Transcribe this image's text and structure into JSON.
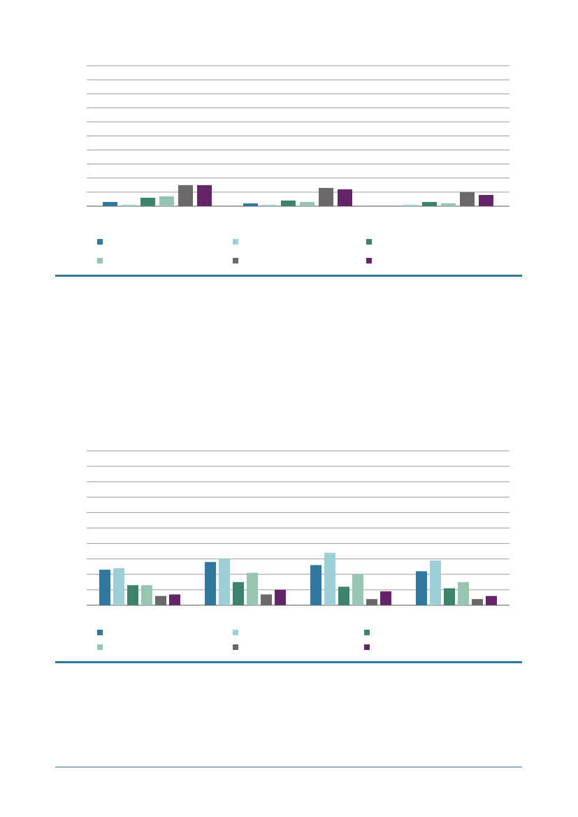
{
  "colors": {
    "blue": "#31789e",
    "light_blue": "#9ecfd9",
    "green": "#3b836a",
    "light_green": "#96c5b1",
    "gray": "#6d6868",
    "purple": "#662569",
    "grid": "#9a9a9a",
    "rule": "#31789e"
  },
  "chart_data": [
    {
      "type": "bar",
      "categories": [
        "",
        "",
        ""
      ],
      "ylim": [
        0,
        100
      ],
      "grid": true,
      "legend_placement": "bottom",
      "series": [
        {
          "color_key": "blue",
          "values": [
            3,
            2,
            0
          ]
        },
        {
          "color_key": "light_blue",
          "values": [
            1,
            1,
            1
          ]
        },
        {
          "color_key": "green",
          "values": [
            6,
            4,
            3
          ]
        },
        {
          "color_key": "light_green",
          "values": [
            7,
            3,
            2
          ]
        },
        {
          "color_key": "gray",
          "values": [
            15,
            13,
            10
          ]
        },
        {
          "color_key": "purple",
          "values": [
            15,
            12,
            8
          ]
        }
      ]
    },
    {
      "type": "bar",
      "categories": [
        "",
        "",
        "",
        ""
      ],
      "ylim": [
        0,
        100
      ],
      "grid": true,
      "legend_placement": "bottom",
      "series": [
        {
          "color_key": "blue",
          "values": [
            23,
            28,
            26,
            22
          ]
        },
        {
          "color_key": "light_blue",
          "values": [
            24,
            30,
            34,
            29
          ]
        },
        {
          "color_key": "green",
          "values": [
            13,
            15,
            12,
            11
          ]
        },
        {
          "color_key": "light_green",
          "values": [
            13,
            21,
            20,
            15
          ]
        },
        {
          "color_key": "gray",
          "values": [
            6,
            7,
            4,
            4
          ]
        },
        {
          "color_key": "purple",
          "values": [
            7,
            10,
            9,
            6
          ]
        }
      ]
    }
  ]
}
